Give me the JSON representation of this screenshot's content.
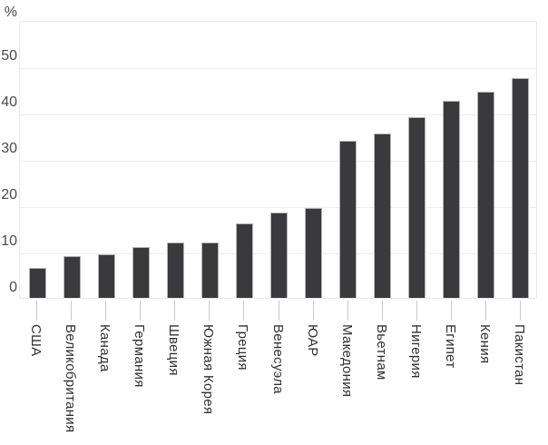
{
  "chart_data": {
    "type": "bar",
    "title": "",
    "xlabel": "",
    "ylabel": "%",
    "categories": [
      "США",
      "Великобритания",
      "Канада",
      "Германия",
      "Швеция",
      "Южная Корея",
      "Греция",
      "Венесуэла",
      "ЮАР",
      "Македония",
      "Вьетнам",
      "Нигерия",
      "Египет",
      "Кения",
      "Пакистан"
    ],
    "values": [
      6.5,
      9,
      9.5,
      11,
      12,
      12,
      16,
      18.5,
      19.5,
      34,
      35.5,
      39,
      42.5,
      44.5,
      47.5
    ],
    "ylim": [
      0,
      60
    ],
    "yticks": [
      0,
      10,
      20,
      30,
      40,
      50
    ],
    "grid": true,
    "legend": false,
    "colors": {
      "bar_fill": "#3a3a3c",
      "bar_border": "#b4b4b4",
      "gridline": "#ededed",
      "plot_border": "#e9e9e9",
      "y_text": "#4a4a4a",
      "x_text": "#303030",
      "tick_line": "#c9c9c9",
      "background": "#ffffff"
    }
  }
}
